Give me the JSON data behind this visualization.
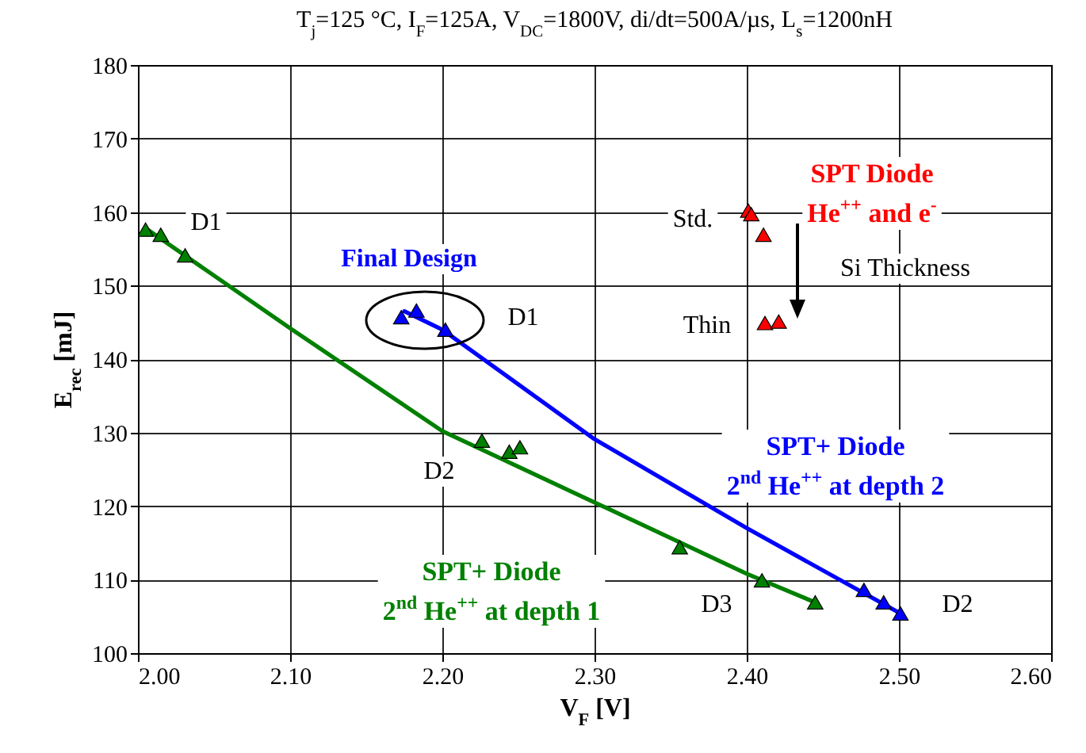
{
  "chart_data": {
    "type": "scatter",
    "title": "T$_{j}$=125 °C, I$_{F}$=125A, V$_{DC}$=1800V, di/dt=500A/µs, L$_{s}$=1200nH",
    "xlabel": "V$_{F}$ [V]",
    "ylabel": "E$_{rec}$ [mJ]",
    "xlim": [
      2.0,
      2.6
    ],
    "ylim": [
      100,
      180
    ],
    "xticks": [
      {
        "value": 2.0,
        "label": "2.00"
      },
      {
        "value": 2.1,
        "label": "2.10"
      },
      {
        "value": 2.2,
        "label": "2.20"
      },
      {
        "value": 2.3,
        "label": "2.30"
      },
      {
        "value": 2.4,
        "label": "2.40"
      },
      {
        "value": 2.5,
        "label": "2.50"
      },
      {
        "value": 2.6,
        "label": "2.60"
      }
    ],
    "yticks": [
      100,
      110,
      120,
      130,
      140,
      150,
      160,
      170,
      180
    ],
    "grid": true,
    "marker": "triangle",
    "line_style": "solid",
    "series": [
      {
        "name": "SPT+ Diode\n2$^{nd}$ He$^{++}$ at depth 1",
        "color": "#008000",
        "x": [
          2.005,
          2.015,
          2.031,
          2.226,
          2.244,
          2.251,
          2.356,
          2.41,
          2.445
        ],
        "values": [
          157.6,
          156.9,
          154.1,
          128.9,
          127.4,
          128.0,
          114.4,
          109.9,
          106.9
        ]
      },
      {
        "name": "SPT+ Diode\n2$^{nd}$ He$^{++}$ at depth 2",
        "color": "#0000ff",
        "x": [
          2.173,
          2.183,
          2.202,
          2.477,
          2.49,
          2.501
        ],
        "values": [
          145.7,
          146.6,
          144.0,
          108.6,
          106.9,
          105.4
        ]
      },
      {
        "name": "SPT Diode\nHe$^{++}$ and e$^{-}$",
        "color": "#ff0000",
        "x": [
          2.401,
          2.403,
          2.411,
          2.412,
          2.421
        ],
        "values": [
          160.2,
          159.7,
          156.9,
          144.9,
          145.1
        ]
      },
      {
        "color": "#008000",
        "type": "line",
        "marker": "none",
        "x": [
          2.005,
          2.1,
          2.2,
          2.3,
          2.4,
          2.445
        ],
        "values": [
          157.8,
          144.2,
          130.2,
          120.5,
          110.8,
          106.9
        ]
      },
      {
        "color": "#0000ff",
        "type": "line",
        "marker": "none",
        "x": [
          2.175,
          2.2,
          2.3,
          2.4,
          2.501
        ],
        "values": [
          146.5,
          144.0,
          129.1,
          117.0,
          105.4
        ]
      }
    ],
    "annotations": [
      "D1",
      "D1",
      "D2",
      "D3",
      "D2",
      "Final Design",
      "Std.",
      "Thin",
      "Si Thickness"
    ]
  }
}
